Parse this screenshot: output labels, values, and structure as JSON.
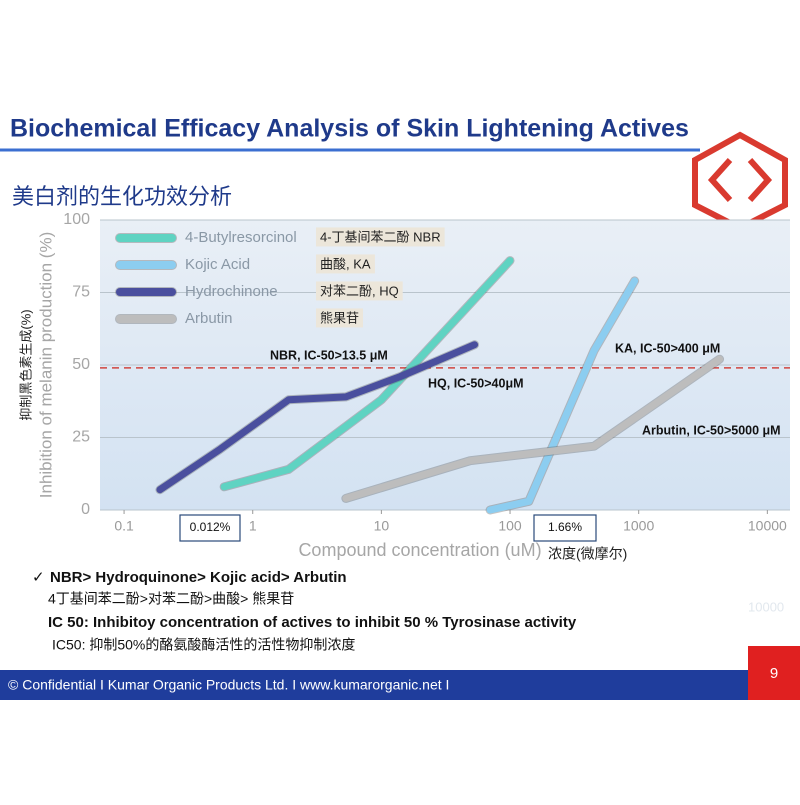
{
  "title": "Biochemical Efficacy Analysis of Skin Lightening Actives",
  "subtitle": "美白剂的生化功效分析",
  "chart_data": {
    "type": "line",
    "x_label": "Compound concentration (uM)",
    "x_label_cn": "浓度(微摩尔)",
    "y_label": "Inhibition of melanin production (%)",
    "y_label_cn": "抑制黑色素生成(%)",
    "log_x": true,
    "xlim": [
      0.065,
      15000
    ],
    "xticks": [
      0.1,
      1,
      10,
      100,
      1000,
      10000
    ],
    "ylim": [
      0,
      100
    ],
    "yticks": [
      0,
      25,
      50,
      75,
      100
    ],
    "grid": true,
    "legend": "top-left",
    "reference_line": {
      "value": 49,
      "color": "#d0453f"
    },
    "series": [
      {
        "name": "4-Butylresorcinol",
        "name_cn": "4-丁基间苯二酚  NBR",
        "color": "#5fd3c2",
        "x": [
          0.6,
          1.9,
          10,
          100
        ],
        "values": [
          8,
          14,
          38,
          86
        ]
      },
      {
        "name": "Kojic Acid",
        "name_cn": "曲酸, KA",
        "color": "#8ccdf0",
        "x": [
          70,
          140,
          450,
          930
        ],
        "values": [
          0,
          3,
          55,
          79
        ]
      },
      {
        "name": "Hydrochinone",
        "name_cn": "对苯二酚, HQ",
        "color": "#4a4f9e",
        "x": [
          0.19,
          0.56,
          1.9,
          5.3,
          14,
          53
        ],
        "values": [
          7,
          21,
          38,
          39,
          46,
          57
        ]
      },
      {
        "name": "Arbutin",
        "name_cn": "熊果苷",
        "color": "#bdbdbd",
        "x": [
          5.3,
          49,
          450,
          4250
        ],
        "values": [
          4,
          17,
          22,
          52
        ]
      }
    ],
    "annotations": [
      "NBR, IC-50>13.5 μM",
      "HQ, IC-50>40μM",
      "KA, IC-50>400 μM",
      "Arbutin, IC-50>5000 μM"
    ],
    "boxes": [
      "0.012%",
      "1.66%"
    ]
  },
  "bullets": [
    "NBR> Hydroquinone> Kojic acid> Arbutin",
    "4丁基间苯二酚>对苯二酚>曲酸> 熊果苷",
    "IC 50: Inhibitoy concentration of actives to inhibit 50 % Tyrosinase activity",
    "IC50: 抑制50%的酪氨酸酶活性的活性物抑制浓度"
  ],
  "ghost_text": "10000",
  "footer": "© Confidential I Kumar Organic Products Ltd. I www.kumarorganic.net I",
  "page_number": "9"
}
